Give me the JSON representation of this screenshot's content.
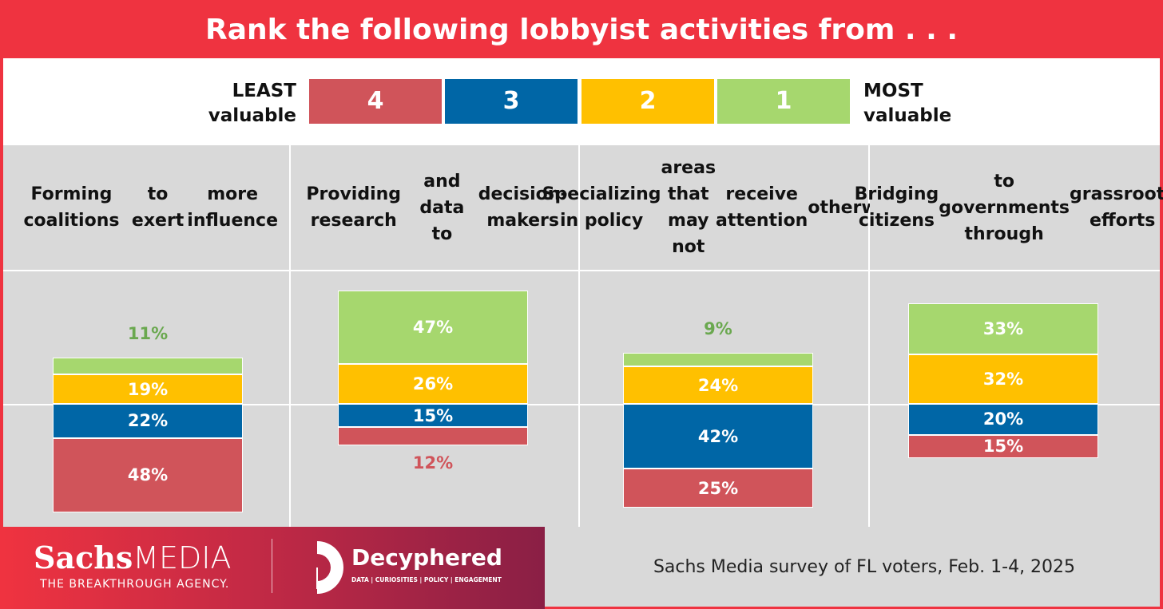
{
  "title": "Rank the following lobbyist activities from . . .",
  "legend": {
    "left_line1": "LEAST",
    "left_line2": "valuable",
    "right_line1": "MOST",
    "right_line2": "valuable",
    "ranks": [
      {
        "label": "4",
        "color": "#d0545a"
      },
      {
        "label": "3",
        "color": "#0066a6"
      },
      {
        "label": "2",
        "color": "#ffc000"
      },
      {
        "label": "1",
        "color": "#a6d76e"
      }
    ]
  },
  "chart_data": {
    "type": "bar",
    "stacked": "diverging",
    "title": "Rank the following lobbyist activities from . . .",
    "categories": [
      "Forming coalitions to exert more influence",
      "Providing research and data to decision-makers",
      "Specializing in policy areas that may not receive attention otherwise",
      "Bridging citizens to governments through grassroots efforts"
    ],
    "category_lines": [
      [
        "Forming coalitions",
        "to exert",
        "more influence"
      ],
      [
        "Providing research",
        "and data to",
        "decision-makers"
      ],
      [
        "Specializing in policy",
        "areas that may not",
        "receive attention",
        "otherwise"
      ],
      [
        "Bridging citizens",
        "to governments through",
        "grassroots efforts"
      ]
    ],
    "series": [
      {
        "name": "1 (most valuable)",
        "color": "#a6d76e",
        "label_color": "#6aa84f",
        "values": [
          11,
          47,
          9,
          33
        ]
      },
      {
        "name": "2",
        "color": "#ffc000",
        "label_color": "#e0a800",
        "values": [
          19,
          26,
          24,
          32
        ]
      },
      {
        "name": "3",
        "color": "#0066a6",
        "label_color": "#0066a6",
        "values": [
          22,
          15,
          42,
          20
        ]
      },
      {
        "name": "4 (least valuable)",
        "color": "#d0545a",
        "label_color": "#d0545a",
        "values": [
          48,
          12,
          25,
          15
        ]
      }
    ],
    "labels": [
      [
        "11%",
        "19%",
        "22%",
        "48%"
      ],
      [
        "47%",
        "26%",
        "15%",
        "12%"
      ],
      [
        "9%",
        "24%",
        "42%",
        "25%"
      ],
      [
        "33%",
        "32%",
        "20%",
        "15%"
      ]
    ],
    "unit": "%"
  },
  "footer": {
    "brand1": "SachsMEDIA",
    "brand1_bold": "Sachs",
    "brand1_light": "MEDIA",
    "brand1_tagline": "THE BREAKTHROUGH AGENCY.",
    "brand2": "Decyphered",
    "brand2_tagline": "DATA | CURIOSITIES | POLICY | ENGAGEMENT",
    "source": "Sachs Media survey of FL voters, Feb. 1-4, 2025"
  }
}
